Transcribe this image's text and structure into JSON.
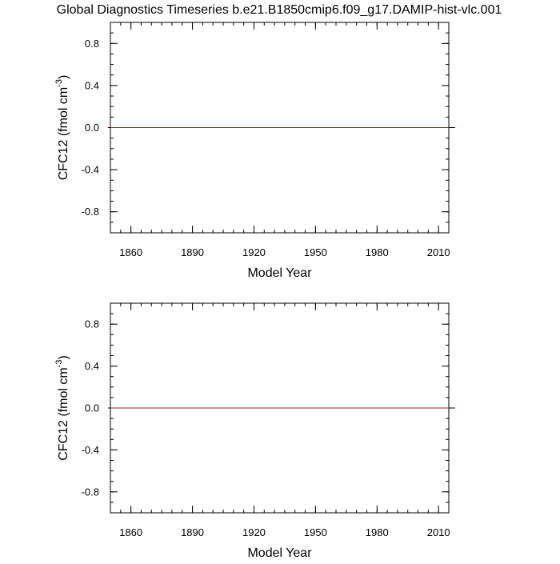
{
  "title": "Global Diagnostics Timeseries b.e21.B1850cmip6.f09_g17.DAMIP-hist-vlc.001",
  "chart_data": [
    {
      "type": "line",
      "xlabel": "Model Year",
      "ylabel_main": "CFC12 (fmol cm",
      "ylabel_sup": "-3",
      "ylabel_close": ")",
      "xlim": [
        1850,
        2015
      ],
      "ylim": [
        -1.0,
        1.0
      ],
      "xticks": [
        1860,
        1890,
        1920,
        1950,
        1980,
        2010
      ],
      "xtick_labels": [
        "1860",
        "1890",
        "1920",
        "1950",
        "1980",
        "2010"
      ],
      "yticks": [
        0.8,
        0.4,
        0.0,
        -0.4,
        -0.8
      ],
      "ytick_labels": [
        "0.8",
        "0.4",
        "0.0",
        "-0.4",
        "-0.8"
      ],
      "grid": false,
      "reference_line": 0.0,
      "series": [
        {
          "color": "#b22222",
          "x": [
            1850,
            2015
          ],
          "y": [
            0.0,
            0.0
          ]
        }
      ]
    },
    {
      "type": "line",
      "xlabel": "Model Year",
      "ylabel_main": "CFC12 (fmol cm",
      "ylabel_sup": "-3",
      "ylabel_close": ")",
      "xlim": [
        1850,
        2015
      ],
      "ylim": [
        -1.0,
        1.0
      ],
      "xticks": [
        1860,
        1890,
        1920,
        1950,
        1980,
        2010
      ],
      "xtick_labels": [
        "1860",
        "1890",
        "1920",
        "1950",
        "1980",
        "2010"
      ],
      "yticks": [
        0.8,
        0.4,
        0.0,
        -0.4,
        -0.8
      ],
      "ytick_labels": [
        "0.8",
        "0.4",
        "0.0",
        "-0.4",
        "-0.8"
      ],
      "grid": false,
      "reference_line": 0.0,
      "series": [
        {
          "color": "#b22222",
          "x": [
            1850,
            2015
          ],
          "y": [
            0.0,
            0.0
          ]
        }
      ]
    }
  ]
}
